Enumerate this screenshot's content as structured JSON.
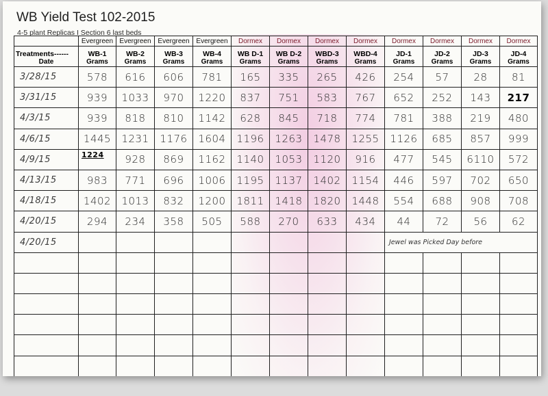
{
  "title": "WB Yield Test 102-2015",
  "subtitle": "4-5 plant Replicas I Section 6 last beds",
  "header": {
    "treatments_label": "Treatments------",
    "date_label": "Date",
    "groups": [
      "Evergreen",
      "Evergreen",
      "Evergreen",
      "Evergreen",
      "Dormex",
      "Dormex",
      "Dormex",
      "Dormex",
      "Dormex",
      "Dormex",
      "Dormex",
      "Dormex"
    ],
    "columns": [
      "WB-1",
      "WB-2",
      "WB-3",
      "WB-4",
      "WB D-1",
      "WB D-2",
      "WBD-3",
      "WBD-4",
      "JD-1",
      "JD-2",
      "JD-3",
      "JD-4"
    ],
    "unit": "Grams"
  },
  "rows": [
    {
      "date": "3/28/15",
      "values": [
        "578",
        "616",
        "606",
        "781",
        "165",
        "335",
        "265",
        "426",
        "254",
        "57",
        "28",
        "81"
      ]
    },
    {
      "date": "3/31/15",
      "values": [
        "939",
        "1033",
        "970",
        "1220",
        "837",
        "751",
        "583",
        "767",
        "652",
        "252",
        "143",
        "217"
      ]
    },
    {
      "date": "4/3/15",
      "values": [
        "939",
        "818",
        "810",
        "1142",
        "628",
        "845",
        "718",
        "774",
        "781",
        "388",
        "219",
        "480"
      ]
    },
    {
      "date": "4/6/15",
      "values": [
        "1445",
        "1231",
        "1176",
        "1604",
        "1196",
        "1263",
        "1478",
        "1255",
        "1126",
        "685",
        "857",
        "999"
      ]
    },
    {
      "date": "4/9/15",
      "correction": "1224",
      "values": [
        "",
        "928",
        "869",
        "1162",
        "1140",
        "1053",
        "1120",
        "916",
        "477",
        "545",
        "6110",
        "572"
      ]
    },
    {
      "date": "4/13/15",
      "values": [
        "983",
        "771",
        "696",
        "1006",
        "1195",
        "1137",
        "1402",
        "1154",
        "446",
        "597",
        "702",
        "650"
      ]
    },
    {
      "date": "4/18/15",
      "values": [
        "1402",
        "1013",
        "832",
        "1200",
        "1811",
        "1418",
        "1820",
        "1448",
        "554",
        "688",
        "908",
        "708"
      ]
    },
    {
      "date": "4/20/15",
      "values": [
        "294",
        "234",
        "358",
        "505",
        "588",
        "270",
        "633",
        "434",
        "44",
        "72",
        "56",
        "62"
      ]
    },
    {
      "date": "4/20/15",
      "note": "Jewel was Picked Day before",
      "values": [
        "",
        "",
        "",
        "",
        "",
        "",
        "",
        "",
        "",
        "",
        "",
        ""
      ]
    }
  ],
  "empty_rows": 6
}
